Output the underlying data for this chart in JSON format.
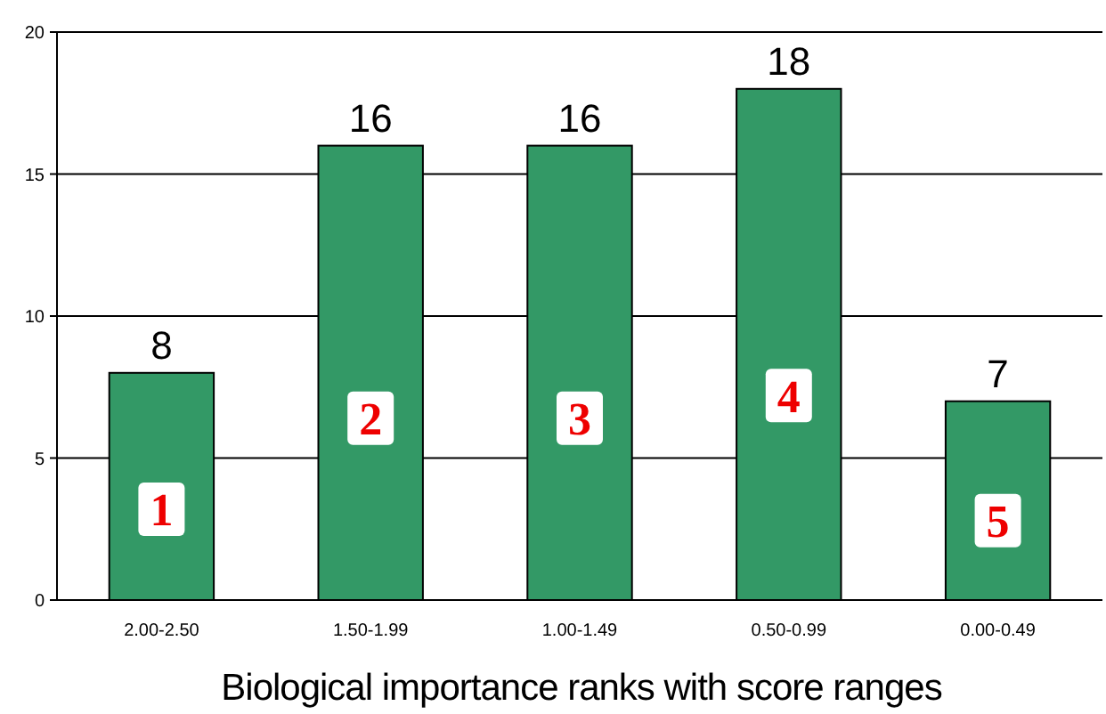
{
  "chart_data": {
    "type": "bar",
    "xlabel": "Biological importance ranks with score ranges",
    "categories": [
      "2.00-2.50",
      "1.50-1.99",
      "1.00-1.49",
      "0.50-0.99",
      "0.00-0.49"
    ],
    "values": [
      8,
      16,
      16,
      18,
      7
    ],
    "color": "#339966",
    "ylim": [
      0,
      20
    ],
    "yticks": [
      0,
      5,
      10,
      15,
      20
    ],
    "grid": "y",
    "data_labels": true,
    "annotations": [
      "1",
      "2",
      "3",
      "4",
      "5"
    ]
  }
}
